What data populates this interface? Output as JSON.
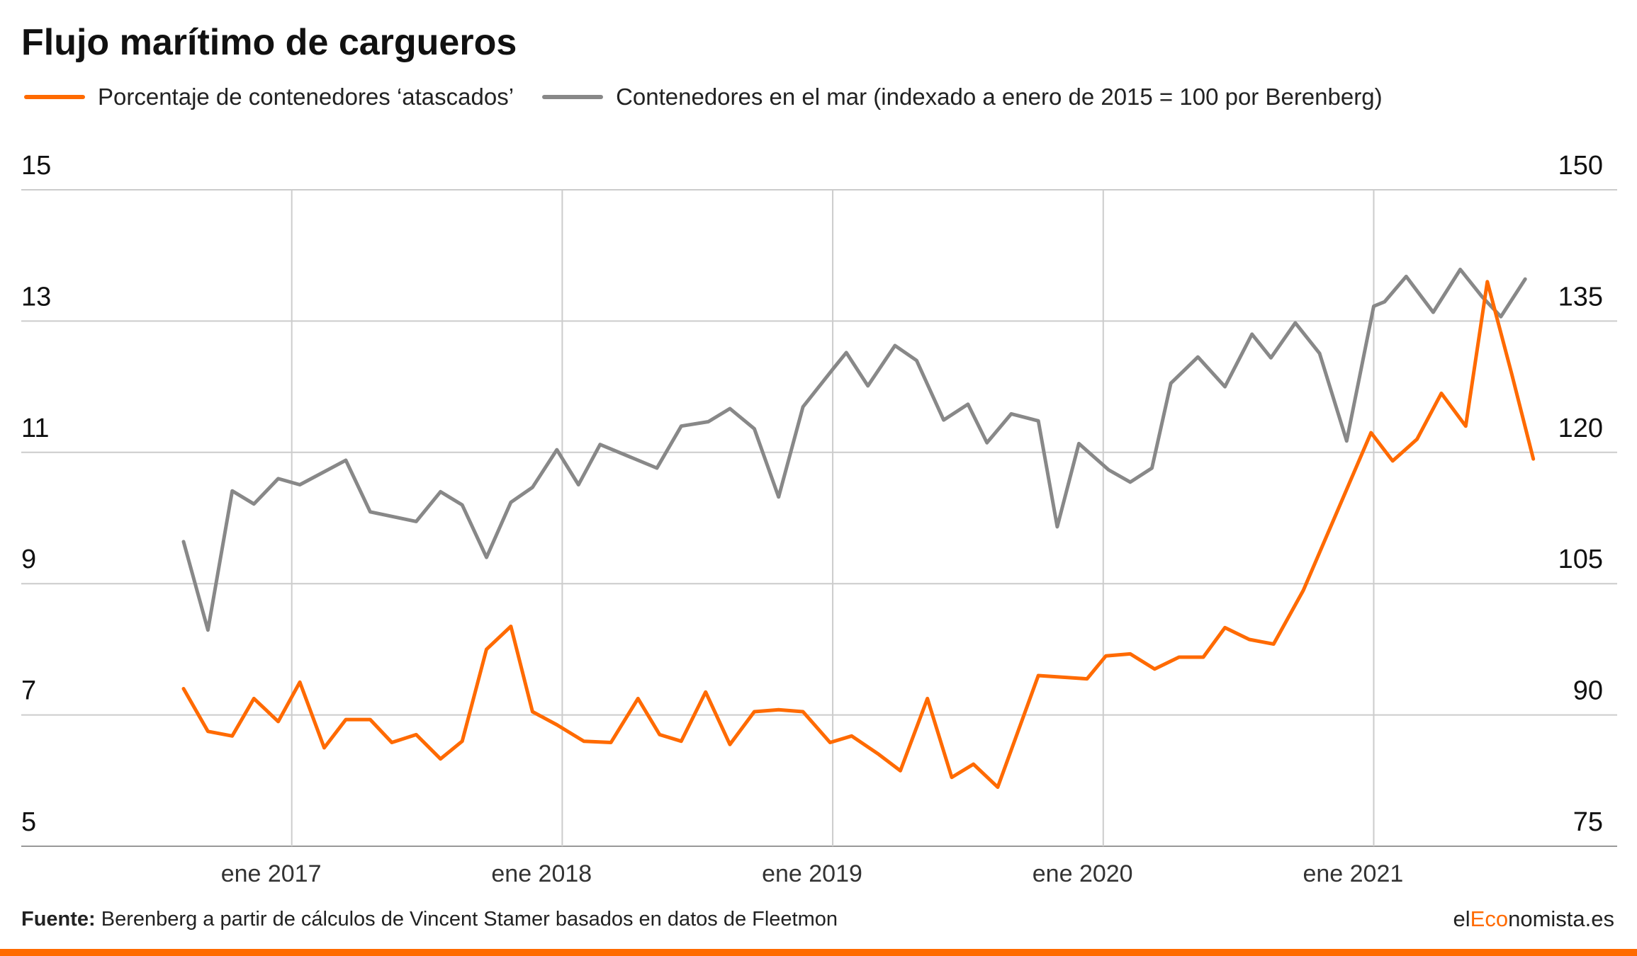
{
  "title": "Flujo marítimo de cargueros",
  "source_label": "Fuente:",
  "source_text": " Berenberg a partir de cálculos de Vincent Stamer basados en datos de Fleetmon",
  "brand": {
    "prefix": "el",
    "accent": "Eco",
    "suffix": "nomista.es"
  },
  "colors": {
    "orange": "#ff6a00",
    "gray": "#888888",
    "grid": "#cccccc",
    "accent_bar": "#ff6a00"
  },
  "chart_data": {
    "type": "line",
    "x_tick_labels": [
      "ene 2017",
      "ene 2018",
      "ene 2019",
      "ene 2020",
      "ene 2021"
    ],
    "left_axis": {
      "ticks": [
        5,
        7,
        9,
        11,
        13,
        15
      ],
      "range": [
        5,
        15
      ]
    },
    "right_axis": {
      "ticks": [
        75,
        90,
        105,
        120,
        135,
        150
      ],
      "range": [
        75,
        150
      ]
    },
    "series": [
      {
        "name": "Porcentaje de contenedores ‘atascados’",
        "axis": "left",
        "color": "#ff6a00",
        "points": [
          [
            2016.6,
            7.4
          ],
          [
            2016.69,
            6.75
          ],
          [
            2016.78,
            6.68
          ],
          [
            2016.86,
            7.25
          ],
          [
            2016.95,
            6.9
          ],
          [
            2017.03,
            7.5
          ],
          [
            2017.12,
            6.5
          ],
          [
            2017.2,
            6.93
          ],
          [
            2017.29,
            6.93
          ],
          [
            2017.37,
            6.58
          ],
          [
            2017.46,
            6.7
          ],
          [
            2017.55,
            6.33
          ],
          [
            2017.63,
            6.6
          ],
          [
            2017.72,
            8.0
          ],
          [
            2017.81,
            8.35
          ],
          [
            2017.89,
            7.05
          ],
          [
            2017.98,
            6.85
          ],
          [
            2018.08,
            6.6
          ],
          [
            2018.18,
            6.58
          ],
          [
            2018.28,
            7.25
          ],
          [
            2018.36,
            6.7
          ],
          [
            2018.44,
            6.6
          ],
          [
            2018.53,
            7.35
          ],
          [
            2018.62,
            6.55
          ],
          [
            2018.71,
            7.05
          ],
          [
            2018.8,
            7.08
          ],
          [
            2018.89,
            7.05
          ],
          [
            2018.99,
            6.58
          ],
          [
            2019.07,
            6.68
          ],
          [
            2019.17,
            6.4
          ],
          [
            2019.25,
            6.15
          ],
          [
            2019.35,
            7.25
          ],
          [
            2019.44,
            6.05
          ],
          [
            2019.52,
            6.25
          ],
          [
            2019.61,
            5.9
          ],
          [
            2019.76,
            7.6
          ],
          [
            2019.94,
            7.55
          ],
          [
            2020.01,
            7.9
          ],
          [
            2020.1,
            7.93
          ],
          [
            2020.19,
            7.7
          ],
          [
            2020.28,
            7.88
          ],
          [
            2020.37,
            7.88
          ],
          [
            2020.45,
            8.33
          ],
          [
            2020.54,
            8.15
          ],
          [
            2020.63,
            8.08
          ],
          [
            2020.74,
            8.9
          ],
          [
            2020.99,
            11.3
          ],
          [
            2021.07,
            10.87
          ],
          [
            2021.16,
            11.2
          ],
          [
            2021.25,
            11.9
          ],
          [
            2021.34,
            11.4
          ],
          [
            2021.42,
            13.6
          ],
          [
            2021.51,
            12.2
          ],
          [
            2021.59,
            10.9
          ]
        ]
      },
      {
        "name": "Contenedores en el mar (indexado a enero de 2015 = 100 por Berenberg)",
        "axis": "right",
        "color": "#888888",
        "points": [
          [
            2016.6,
            109.8
          ],
          [
            2016.69,
            99.7
          ],
          [
            2016.78,
            115.6
          ],
          [
            2016.86,
            114.1
          ],
          [
            2016.95,
            117.0
          ],
          [
            2017.03,
            116.3
          ],
          [
            2017.2,
            119.1
          ],
          [
            2017.29,
            113.2
          ],
          [
            2017.46,
            112.1
          ],
          [
            2017.55,
            115.5
          ],
          [
            2017.63,
            114.0
          ],
          [
            2017.72,
            108.0
          ],
          [
            2017.81,
            114.3
          ],
          [
            2017.89,
            116.0
          ],
          [
            2017.98,
            120.3
          ],
          [
            2018.06,
            116.3
          ],
          [
            2018.14,
            120.9
          ],
          [
            2018.35,
            118.2
          ],
          [
            2018.44,
            123.0
          ],
          [
            2018.54,
            123.5
          ],
          [
            2018.62,
            125.0
          ],
          [
            2018.71,
            122.7
          ],
          [
            2018.8,
            114.9
          ],
          [
            2018.89,
            125.2
          ],
          [
            2019.0,
            129.5
          ],
          [
            2019.05,
            131.4
          ],
          [
            2019.13,
            127.6
          ],
          [
            2019.23,
            132.2
          ],
          [
            2019.31,
            130.5
          ],
          [
            2019.41,
            123.7
          ],
          [
            2019.5,
            125.5
          ],
          [
            2019.57,
            121.1
          ],
          [
            2019.66,
            124.4
          ],
          [
            2019.76,
            123.6
          ],
          [
            2019.83,
            111.5
          ],
          [
            2019.91,
            121.0
          ],
          [
            2020.02,
            118.0
          ],
          [
            2020.1,
            116.6
          ],
          [
            2020.18,
            118.2
          ],
          [
            2020.25,
            127.9
          ],
          [
            2020.35,
            130.9
          ],
          [
            2020.45,
            127.5
          ],
          [
            2020.55,
            133.5
          ],
          [
            2020.62,
            130.8
          ],
          [
            2020.71,
            134.8
          ],
          [
            2020.8,
            131.3
          ],
          [
            2020.9,
            121.3
          ],
          [
            2021.0,
            136.7
          ],
          [
            2021.04,
            137.2
          ],
          [
            2021.12,
            140.1
          ],
          [
            2021.22,
            136.0
          ],
          [
            2021.32,
            140.9
          ],
          [
            2021.4,
            137.8
          ],
          [
            2021.47,
            135.5
          ],
          [
            2021.56,
            139.8
          ]
        ]
      }
    ]
  }
}
